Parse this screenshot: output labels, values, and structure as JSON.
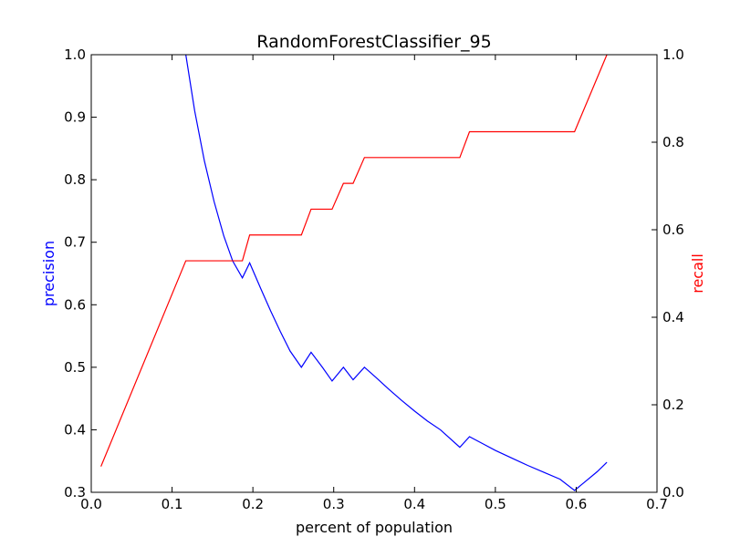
{
  "chart_data": {
    "type": "line",
    "title": "RandomForestClassifier_95",
    "xlabel": "percent of population",
    "ylabel_left": "precision",
    "ylabel_right": "recall",
    "xlim": [
      0.0,
      0.7
    ],
    "ylim_left": [
      0.3,
      1.0
    ],
    "ylim_right": [
      0.0,
      1.0
    ],
    "xticks": [
      "0.0",
      "0.1",
      "0.2",
      "0.3",
      "0.4",
      "0.5",
      "0.6",
      "0.7"
    ],
    "yticks_left": [
      "0.3",
      "0.4",
      "0.5",
      "0.6",
      "0.7",
      "0.8",
      "0.9",
      "1.0"
    ],
    "yticks_right": [
      "0.0",
      "0.2",
      "0.4",
      "0.6",
      "0.8",
      "1.0"
    ],
    "grid": false,
    "series": [
      {
        "name": "precision",
        "axis": "left",
        "color": "#0000ff",
        "x": [
          0.117,
          0.128,
          0.14,
          0.152,
          0.164,
          0.175,
          0.187,
          0.196,
          0.21,
          0.222,
          0.234,
          0.246,
          0.26,
          0.272,
          0.286,
          0.298,
          0.312,
          0.324,
          0.338,
          0.352,
          0.368,
          0.384,
          0.4,
          0.416,
          0.432,
          0.456,
          0.468,
          0.484,
          0.5,
          0.52,
          0.54,
          0.56,
          0.58,
          0.598,
          0.612,
          0.626,
          0.638
        ],
        "y": [
          1.0,
          0.91,
          0.83,
          0.765,
          0.71,
          0.67,
          0.643,
          0.667,
          0.625,
          0.59,
          0.557,
          0.526,
          0.5,
          0.524,
          0.5,
          0.478,
          0.5,
          0.48,
          0.5,
          0.484,
          0.465,
          0.447,
          0.43,
          0.414,
          0.4,
          0.372,
          0.389,
          0.378,
          0.367,
          0.355,
          0.343,
          0.332,
          0.321,
          0.303,
          0.318,
          0.333,
          0.348
        ]
      },
      {
        "name": "recall",
        "axis": "right",
        "color": "#ff0000",
        "x": [
          0.012,
          0.117,
          0.175,
          0.187,
          0.196,
          0.26,
          0.272,
          0.298,
          0.312,
          0.324,
          0.338,
          0.456,
          0.468,
          0.598,
          0.638
        ],
        "y": [
          0.059,
          0.529,
          0.529,
          0.529,
          0.588,
          0.588,
          0.647,
          0.647,
          0.706,
          0.706,
          0.765,
          0.765,
          0.824,
          0.824,
          1.0
        ]
      }
    ]
  }
}
